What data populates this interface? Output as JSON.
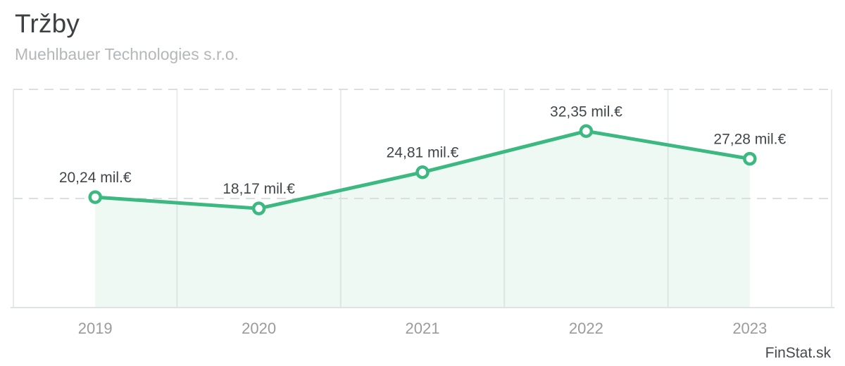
{
  "page": {
    "title": "Tržby",
    "subtitle": "Muehlbauer Technologies s.r.o.",
    "watermark": "FinStat.sk"
  },
  "chart_data": {
    "type": "area",
    "title": "Tržby",
    "subtitle": "Muehlbauer Technologies s.r.o.",
    "categories": [
      "2019",
      "2020",
      "2021",
      "2022",
      "2023"
    ],
    "values": [
      20.24,
      18.17,
      24.81,
      32.35,
      27.28
    ],
    "point_labels": [
      "20,24 mil.€",
      "18,17 mil.€",
      "24,81 mil.€",
      "32,35 mil.€",
      "27,28 mil.€"
    ],
    "unit": "mil.€",
    "xlabel": "",
    "ylabel": "",
    "ylim": [
      0,
      40
    ],
    "y_gridlines_dashed": [
      20,
      40
    ],
    "x_gridlines_between_categories": true,
    "legend": "none",
    "colors": {
      "line": "#3cb881",
      "point_fill": "#ffffff",
      "area_fill": "rgba(61,185,130,0.085)",
      "solid_grid": "#e8ebed",
      "dashed_grid": "#dcdfe1",
      "axis_line": "#e0e3e3",
      "point_label_text": "#41464b",
      "axis_label_text": "#9b9b9b"
    }
  }
}
